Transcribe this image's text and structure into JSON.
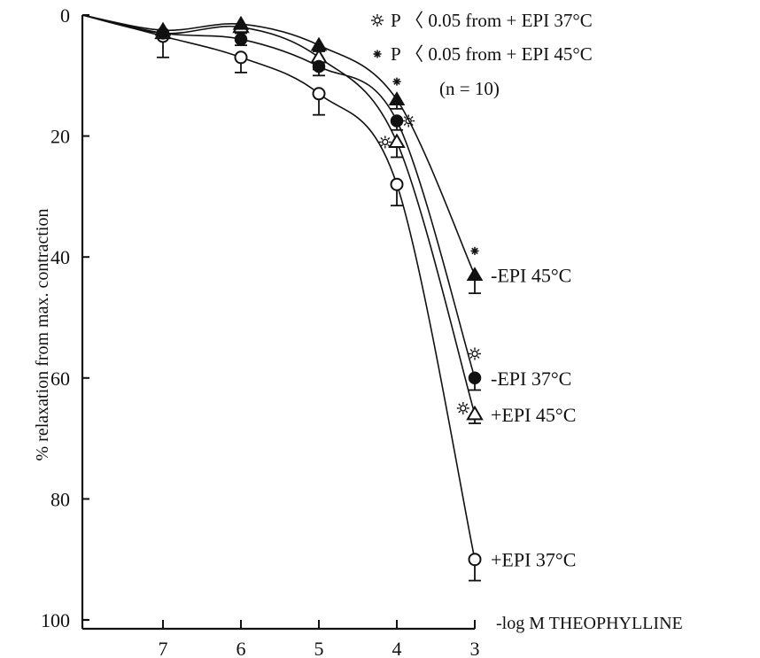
{
  "chart_data": {
    "type": "line",
    "title": "",
    "xlabel": "-log M THEOPHYLLINE",
    "ylabel": "% relaxation from max. contraction",
    "x_ticks": [
      7,
      6,
      5,
      4,
      3
    ],
    "y_ticks": [
      0,
      20,
      40,
      60,
      80,
      100
    ],
    "xlim": [
      8,
      3
    ],
    "ylim": [
      0,
      100
    ],
    "y_inverted": true,
    "grid": false,
    "legend": {
      "placement": "top-right",
      "entries": [
        {
          "symbol": "sun",
          "text": "P 〈 0.05 from + EPI 37°C"
        },
        {
          "symbol": "asterisk",
          "text": "P 〈 0.05 from + EPI 45°C"
        }
      ],
      "note": "(n = 10)"
    },
    "series": [
      {
        "name": "+EPI 37°C",
        "marker": "open-circle",
        "x": [
          7,
          6,
          5,
          4,
          3
        ],
        "y": [
          3.5,
          7,
          13,
          28,
          90
        ],
        "err": [
          3.5,
          2.5,
          3.5,
          3.5,
          3.5
        ]
      },
      {
        "name": "+EPI 45°C",
        "marker": "open-triangle",
        "x": [
          7,
          6,
          5,
          4,
          3
        ],
        "y": [
          3,
          2,
          7,
          21,
          66
        ],
        "err": [
          0,
          1,
          2,
          2.5,
          1.5
        ]
      },
      {
        "name": "-EPI 37°C",
        "marker": "filled-circle",
        "x": [
          7,
          6,
          5,
          4,
          3
        ],
        "y": [
          3,
          4,
          8.5,
          17.5,
          60
        ],
        "err": [
          0,
          1,
          1.5,
          1.5,
          2
        ]
      },
      {
        "name": "-EPI 45°C",
        "marker": "filled-triangle",
        "x": [
          7,
          6,
          5,
          4,
          3
        ],
        "y": [
          2.5,
          1.5,
          5,
          14,
          43
        ],
        "err": [
          0,
          0.5,
          1,
          1.5,
          3
        ]
      }
    ],
    "significance_markers": [
      {
        "symbol": "asterisk",
        "x": 4,
        "y": 11
      },
      {
        "symbol": "sun",
        "x": 3.85,
        "y": 17.5
      },
      {
        "symbol": "sun",
        "x": 4.15,
        "y": 21
      },
      {
        "symbol": "asterisk",
        "x": 3,
        "y": 39
      },
      {
        "symbol": "sun",
        "x": 3,
        "y": 56
      },
      {
        "symbol": "sun",
        "x": 3.15,
        "y": 65
      }
    ]
  }
}
